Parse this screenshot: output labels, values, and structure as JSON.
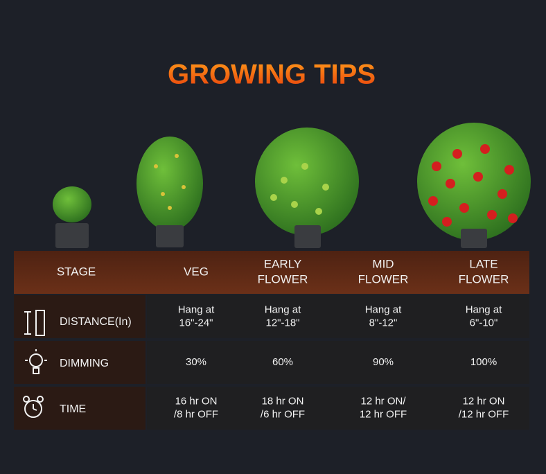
{
  "title": "GROWING TIPS",
  "table": {
    "header": [
      [
        "STAGE"
      ],
      [
        "VEG"
      ],
      [
        "EARLY",
        "FLOWER"
      ],
      [
        "MID",
        "FLOWER"
      ],
      [
        "LATE",
        "FLOWER"
      ]
    ],
    "rows": [
      {
        "label": "DISTANCE(In)",
        "cells": [
          [
            "Hang at",
            "16\"-24\""
          ],
          [
            "Hang at",
            "12\"-18\""
          ],
          [
            "Hang at",
            "8\"-12\""
          ],
          [
            "Hang at",
            "6\"-10\""
          ]
        ]
      },
      {
        "label": "DIMMING",
        "cells": [
          [
            "30%"
          ],
          [
            "60%"
          ],
          [
            "90%"
          ],
          [
            "100%"
          ]
        ]
      },
      {
        "label": "TIME",
        "cells": [
          [
            "16 hr ON",
            "/8 hr OFF"
          ],
          [
            "18 hr ON",
            "/6 hr OFF"
          ],
          [
            "12 hr ON/",
            "12 hr OFF"
          ],
          [
            "12 hr ON",
            "/12 hr OFF"
          ]
        ]
      }
    ]
  }
}
